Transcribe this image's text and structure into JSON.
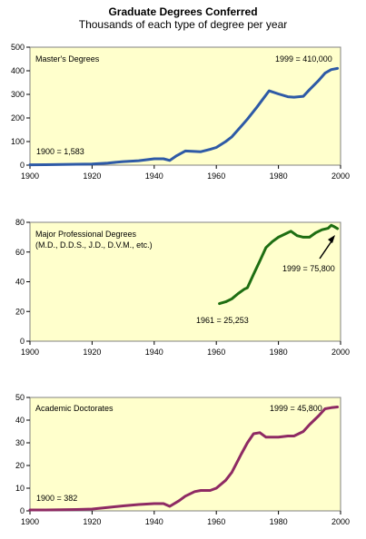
{
  "header": {
    "title": "Graduate Degrees Conferred",
    "subtitle": "Thousands of each type of degree per year"
  },
  "chart_data": [
    {
      "type": "line",
      "label": "Master's Degrees",
      "xlim": [
        1900,
        2000
      ],
      "ylim": [
        0,
        500
      ],
      "xticks": [
        1900,
        1920,
        1940,
        1960,
        1980,
        2000
      ],
      "yticks": [
        0,
        100,
        200,
        300,
        400,
        500
      ],
      "color": "#2e5aa6",
      "annotation_color": "#5a7ec0",
      "grid": false,
      "series": [
        {
          "x": [
            1900,
            1905,
            1910,
            1915,
            1920,
            1925,
            1930,
            1935,
            1940,
            1943,
            1945,
            1947,
            1950,
            1953,
            1955,
            1958,
            1960,
            1963,
            1965,
            1968,
            1970,
            1973,
            1975,
            1977,
            1980,
            1983,
            1985,
            1988,
            1990,
            1993,
            1995,
            1997,
            1999
          ],
          "y": [
            1.6,
            2,
            3,
            4,
            5,
            9,
            15,
            19,
            27,
            27,
            20,
            38,
            60,
            58,
            57,
            67,
            75,
            100,
            120,
            165,
            195,
            245,
            280,
            315,
            302,
            290,
            288,
            292,
            320,
            360,
            390,
            405,
            410
          ]
        }
      ],
      "annotations": [
        {
          "text": "1900 = 1,583",
          "x": 1900,
          "y": 1.6
        },
        {
          "text": "1999 = 410,000",
          "x": 1999,
          "y": 410
        }
      ]
    },
    {
      "type": "line",
      "label": "Major Professional Degrees",
      "sublabel": "(M.D., D.D.S., J.D., D.V.M., etc.)",
      "xlim": [
        1900,
        2000
      ],
      "ylim": [
        0,
        80
      ],
      "xticks": [
        1900,
        1920,
        1940,
        1960,
        1980,
        2000
      ],
      "yticks": [
        0,
        20,
        40,
        60,
        80
      ],
      "color": "#1e6e12",
      "annotation_color": "#2a7a1a",
      "grid": false,
      "series": [
        {
          "x": [
            1961,
            1963,
            1965,
            1967,
            1969,
            1970,
            1972,
            1974,
            1976,
            1978,
            1980,
            1982,
            1984,
            1986,
            1988,
            1990,
            1992,
            1994,
            1996,
            1997,
            1998,
            1999
          ],
          "y": [
            25.3,
            26.5,
            28.5,
            32,
            35,
            36,
            45,
            54,
            63,
            67,
            70,
            72,
            74,
            71,
            70,
            70,
            73,
            75,
            76,
            78,
            77,
            75.8
          ]
        }
      ],
      "annotations": [
        {
          "text": "1961 = 25,253",
          "x": 1961,
          "y": 25.3
        },
        {
          "text": "1999 = 75,800",
          "x": 1999,
          "y": 75.8
        }
      ]
    },
    {
      "type": "line",
      "label": "Academic Doctorates",
      "xlim": [
        1900,
        2000
      ],
      "ylim": [
        0,
        50
      ],
      "xticks": [
        1900,
        1920,
        1940,
        1960,
        1980,
        2000
      ],
      "yticks": [
        0,
        10,
        20,
        30,
        40,
        50
      ],
      "color": "#8e2a63",
      "annotation_color": "#a03a72",
      "grid": false,
      "series": [
        {
          "x": [
            1900,
            1905,
            1910,
            1915,
            1920,
            1925,
            1930,
            1935,
            1940,
            1943,
            1945,
            1948,
            1950,
            1953,
            1955,
            1958,
            1960,
            1963,
            1965,
            1968,
            1970,
            1972,
            1974,
            1976,
            1978,
            1980,
            1983,
            1985,
            1988,
            1990,
            1993,
            1995,
            1997,
            1999
          ],
          "y": [
            0.38,
            0.4,
            0.5,
            0.6,
            0.8,
            1.5,
            2.2,
            2.8,
            3.2,
            3.2,
            2,
            4.5,
            6.5,
            8.5,
            9,
            9,
            10,
            13.5,
            17,
            25,
            30,
            34,
            34.5,
            32.5,
            32.5,
            32.5,
            33,
            33,
            35,
            38,
            42,
            45,
            45.5,
            45.8
          ]
        }
      ],
      "annotations": [
        {
          "text": "1900 = 382",
          "x": 1900,
          "y": 0.38
        },
        {
          "text": "1999 = 45,800",
          "x": 1999,
          "y": 45.8
        }
      ]
    }
  ]
}
